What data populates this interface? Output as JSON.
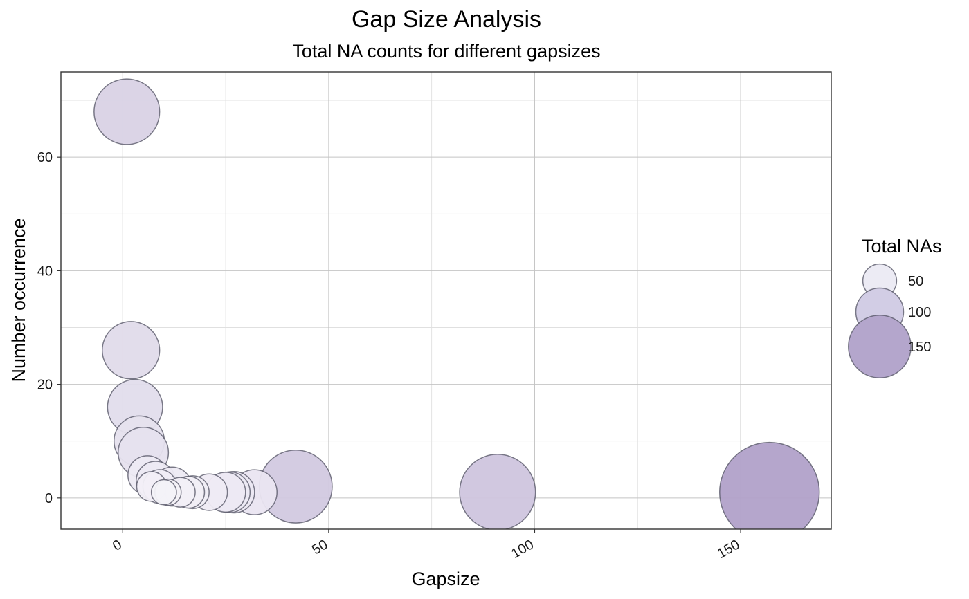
{
  "chart_data": {
    "type": "scatter",
    "title": "Gap Size Analysis",
    "subtitle": "Total NA counts for different gapsizes",
    "xlabel": "Gapsize",
    "ylabel": "Number occurrence",
    "xlim": [
      -15,
      172
    ],
    "ylim": [
      -5.5,
      75
    ],
    "x_ticks": [
      0,
      50,
      100,
      150
    ],
    "y_ticks": [
      0,
      20,
      40,
      60
    ],
    "x_tick_labels": [
      "0",
      "50",
      "100",
      "150"
    ],
    "y_tick_labels": [
      "0",
      "20",
      "40",
      "60"
    ],
    "grid": true,
    "size_variable": "Total NAs",
    "legend": {
      "title": "Total NAs",
      "position": "right",
      "entries": [
        {
          "label": "50",
          "value": 50,
          "color": "#ecebf4"
        },
        {
          "label": "100",
          "value": 100,
          "color": "#d2cde5"
        },
        {
          "label": "150",
          "value": 150,
          "color": "#b4a6cc"
        }
      ]
    },
    "colors": {
      "low": "#f8f7fb",
      "high": "#b1a1c9",
      "point_stroke": "#5a5a6a"
    },
    "points": [
      {
        "x": 1,
        "y": 68,
        "total_nas": 68
      },
      {
        "x": 2,
        "y": 26,
        "total_nas": 52
      },
      {
        "x": 3,
        "y": 16,
        "total_nas": 48
      },
      {
        "x": 4,
        "y": 10,
        "total_nas": 40
      },
      {
        "x": 5,
        "y": 8,
        "total_nas": 40
      },
      {
        "x": 6,
        "y": 4,
        "total_nas": 24
      },
      {
        "x": 7,
        "y": 2,
        "total_nas": 14
      },
      {
        "x": 8,
        "y": 3,
        "total_nas": 24
      },
      {
        "x": 9,
        "y": 2,
        "total_nas": 18
      },
      {
        "x": 10,
        "y": 1,
        "total_nas": 10
      },
      {
        "x": 11,
        "y": 1,
        "total_nas": 11
      },
      {
        "x": 12,
        "y": 2,
        "total_nas": 24
      },
      {
        "x": 14,
        "y": 1,
        "total_nas": 14
      },
      {
        "x": 16,
        "y": 1,
        "total_nas": 16
      },
      {
        "x": 17,
        "y": 1,
        "total_nas": 17
      },
      {
        "x": 21,
        "y": 1,
        "total_nas": 21
      },
      {
        "x": 25,
        "y": 1,
        "total_nas": 25
      },
      {
        "x": 26,
        "y": 1,
        "total_nas": 26
      },
      {
        "x": 27,
        "y": 1,
        "total_nas": 27
      },
      {
        "x": 32,
        "y": 1,
        "total_nas": 32
      },
      {
        "x": 42,
        "y": 2,
        "total_nas": 84
      },
      {
        "x": 91,
        "y": 1,
        "total_nas": 91
      },
      {
        "x": 157,
        "y": 1,
        "total_nas": 157
      }
    ]
  }
}
